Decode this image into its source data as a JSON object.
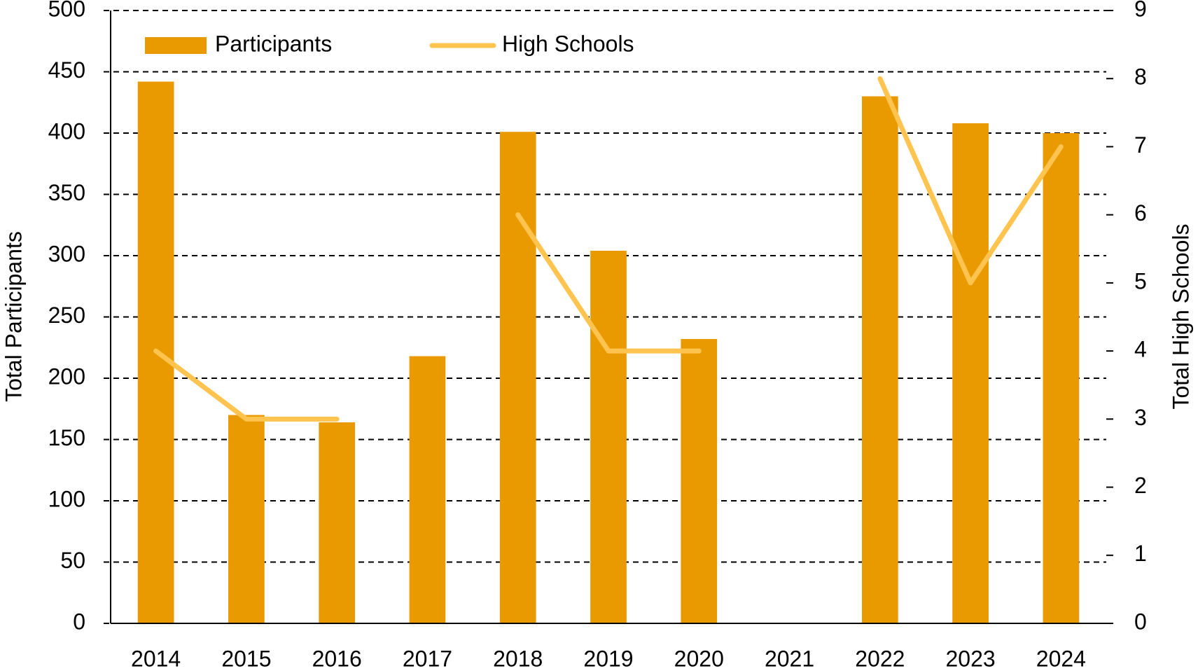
{
  "chart_data": {
    "type": "bar-line",
    "categories": [
      "2014",
      "2015",
      "2016",
      "2017",
      "2018",
      "2019",
      "2020",
      "2021",
      "2022",
      "2023",
      "2024"
    ],
    "series": [
      {
        "name": "Participants",
        "type": "bar",
        "color": "#e89a00",
        "values": [
          442,
          170,
          164,
          218,
          401,
          304,
          232,
          null,
          430,
          408,
          400
        ]
      },
      {
        "name": "High Schools",
        "type": "line",
        "axis": "y2",
        "color": "#ffc44f",
        "values": [
          4,
          3,
          3,
          null,
          6,
          4,
          4,
          null,
          8,
          5,
          7
        ]
      }
    ],
    "y_label": "Total Participants",
    "y2_label": "Total High Schools",
    "ylim": [
      0,
      500
    ],
    "yticks": [
      0,
      50,
      100,
      150,
      200,
      250,
      300,
      350,
      400,
      450,
      500
    ],
    "y2lim": [
      0,
      9
    ],
    "y2ticks": [
      0,
      1,
      2,
      3,
      4,
      5,
      6,
      7,
      8,
      9
    ],
    "grid": true,
    "legend": "top-left"
  }
}
